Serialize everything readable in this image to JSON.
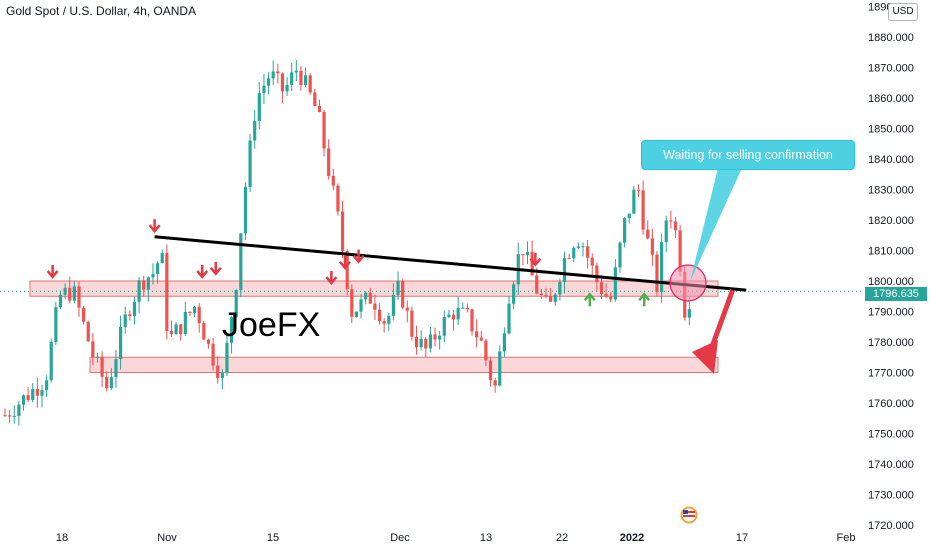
{
  "header": {
    "title": "Gold Spot / U.S. Dollar, 4h, OANDA",
    "currency_badge": "USD"
  },
  "annotations": {
    "callout_text": "Waiting for selling confirmation",
    "watermark_text": "JoeFX",
    "current_price_label": "1796.635"
  },
  "colors": {
    "up_candle": "#26a69a",
    "down_candle": "#ef5350",
    "zone_fill": "#f8c9cc",
    "zone_border": "#e57373",
    "trendline": "#000000",
    "sell_arrow": "#e53946",
    "buy_arrow": "#4caf50",
    "callout": "#4dd0e1",
    "price_line": "#26a69a"
  },
  "chart_data": {
    "type": "candlestick",
    "title": "Gold Spot / U.S. Dollar, 4h, OANDA",
    "ylim": [
      1720,
      1890
    ],
    "y_ticks": [
      "1720.000",
      "1730.000",
      "1740.000",
      "1750.000",
      "1760.000",
      "1770.000",
      "1780.000",
      "1790.000",
      "1800.000",
      "1810.000",
      "1820.000",
      "1830.000",
      "1840.000",
      "1850.000",
      "1860.000",
      "1870.000",
      "1880.000",
      "1890.000"
    ],
    "x_ticks": [
      "18",
      "Nov",
      "15",
      "Dec",
      "13",
      "22",
      "2022",
      "17",
      "Feb"
    ],
    "current_price": 1796.635,
    "grid": false,
    "price_path_keypoints": [
      {
        "x_label": "Oct 12",
        "value": 1756
      },
      {
        "x_label": "Oct 18",
        "value": 1768
      },
      {
        "x_label": "Oct 20",
        "value": 1795
      },
      {
        "x_label": "Oct 22",
        "value": 1797
      },
      {
        "x_label": "Oct 25",
        "value": 1775
      },
      {
        "x_label": "Oct 27",
        "value": 1765
      },
      {
        "x_label": "Oct 30",
        "value": 1790
      },
      {
        "x_label": "Nov 1",
        "value": 1800
      },
      {
        "x_label": "Nov 3",
        "value": 1803
      },
      {
        "x_label": "Nov 4",
        "value": 1810
      },
      {
        "x_label": "Nov 5",
        "value": 1780
      },
      {
        "x_label": "Nov 9",
        "value": 1792
      },
      {
        "x_label": "Nov 11",
        "value": 1778
      },
      {
        "x_label": "Nov 13",
        "value": 1768
      },
      {
        "x_label": "Nov 15",
        "value": 1800
      },
      {
        "x_label": "Nov 16",
        "value": 1825
      },
      {
        "x_label": "Nov 18",
        "value": 1860
      },
      {
        "x_label": "Nov 20",
        "value": 1868
      },
      {
        "x_label": "Nov 22",
        "value": 1862
      },
      {
        "x_label": "Nov 24",
        "value": 1870
      },
      {
        "x_label": "Nov 27",
        "value": 1855
      },
      {
        "x_label": "Nov 30",
        "value": 1820
      },
      {
        "x_label": "Dec 2",
        "value": 1790
      },
      {
        "x_label": "Dec 5",
        "value": 1795
      },
      {
        "x_label": "Dec 7",
        "value": 1786
      },
      {
        "x_label": "Dec 9",
        "value": 1798
      },
      {
        "x_label": "Dec 11",
        "value": 1782
      },
      {
        "x_label": "Dec 13",
        "value": 1777
      },
      {
        "x_label": "Dec 15",
        "value": 1785
      },
      {
        "x_label": "Dec 17",
        "value": 1790
      },
      {
        "x_label": "Dec 19",
        "value": 1788
      },
      {
        "x_label": "Dec 21",
        "value": 1780
      },
      {
        "x_label": "Dec 23",
        "value": 1764
      },
      {
        "x_label": "Dec 25",
        "value": 1795
      },
      {
        "x_label": "Dec 27",
        "value": 1812
      },
      {
        "x_label": "Dec 29",
        "value": 1798
      },
      {
        "x_label": "Dec 31",
        "value": 1790
      },
      {
        "x_label": "Jan 2",
        "value": 1806
      },
      {
        "x_label": "Jan 4",
        "value": 1815
      },
      {
        "x_label": "Jan 5",
        "value": 1812
      },
      {
        "x_label": "Jan 7",
        "value": 1800
      },
      {
        "x_label": "Jan 9",
        "value": 1793
      },
      {
        "x_label": "Jan 11",
        "value": 1818
      },
      {
        "x_label": "Jan 13",
        "value": 1832
      },
      {
        "x_label": "Jan 14",
        "value": 1818
      },
      {
        "x_label": "Jan 16",
        "value": 1797
      },
      {
        "x_label": "Jan 17",
        "value": 1820
      },
      {
        "x_label": "Jan 18",
        "value": 1822
      },
      {
        "x_label": "Jan 19",
        "value": 1812
      },
      {
        "x_label": "Jan 20",
        "value": 1790
      },
      {
        "x_label": "Jan 21",
        "value": 1796.6
      }
    ],
    "zones": [
      {
        "name": "resistance-zone",
        "low": 1795,
        "high": 1800
      },
      {
        "name": "support-zone",
        "low": 1770,
        "high": 1775
      }
    ],
    "trendline": {
      "start": {
        "x_label": "Nov 3",
        "value": 1814.5
      },
      "end": {
        "x_label": "Jan 29",
        "value": 1797
      }
    },
    "sell_markers": [
      {
        "x_label": "Oct 19",
        "value": 1802
      },
      {
        "x_label": "Nov 3",
        "value": 1817
      },
      {
        "x_label": "Nov 10",
        "value": 1802
      },
      {
        "x_label": "Nov 12",
        "value": 1803
      },
      {
        "x_label": "Nov 29",
        "value": 1800
      },
      {
        "x_label": "Dec 1",
        "value": 1805
      },
      {
        "x_label": "Dec 3",
        "value": 1807
      },
      {
        "x_label": "Dec 29",
        "value": 1806
      }
    ],
    "buy_markers": [
      {
        "x_label": "Jan 6",
        "value": 1795
      },
      {
        "x_label": "Jan 14",
        "value": 1795
      }
    ],
    "projection_arrow": {
      "from": {
        "x_label": "Jan 27",
        "value": 1797
      },
      "to": {
        "x_label": "Jan 31",
        "value": 1770
      }
    }
  }
}
